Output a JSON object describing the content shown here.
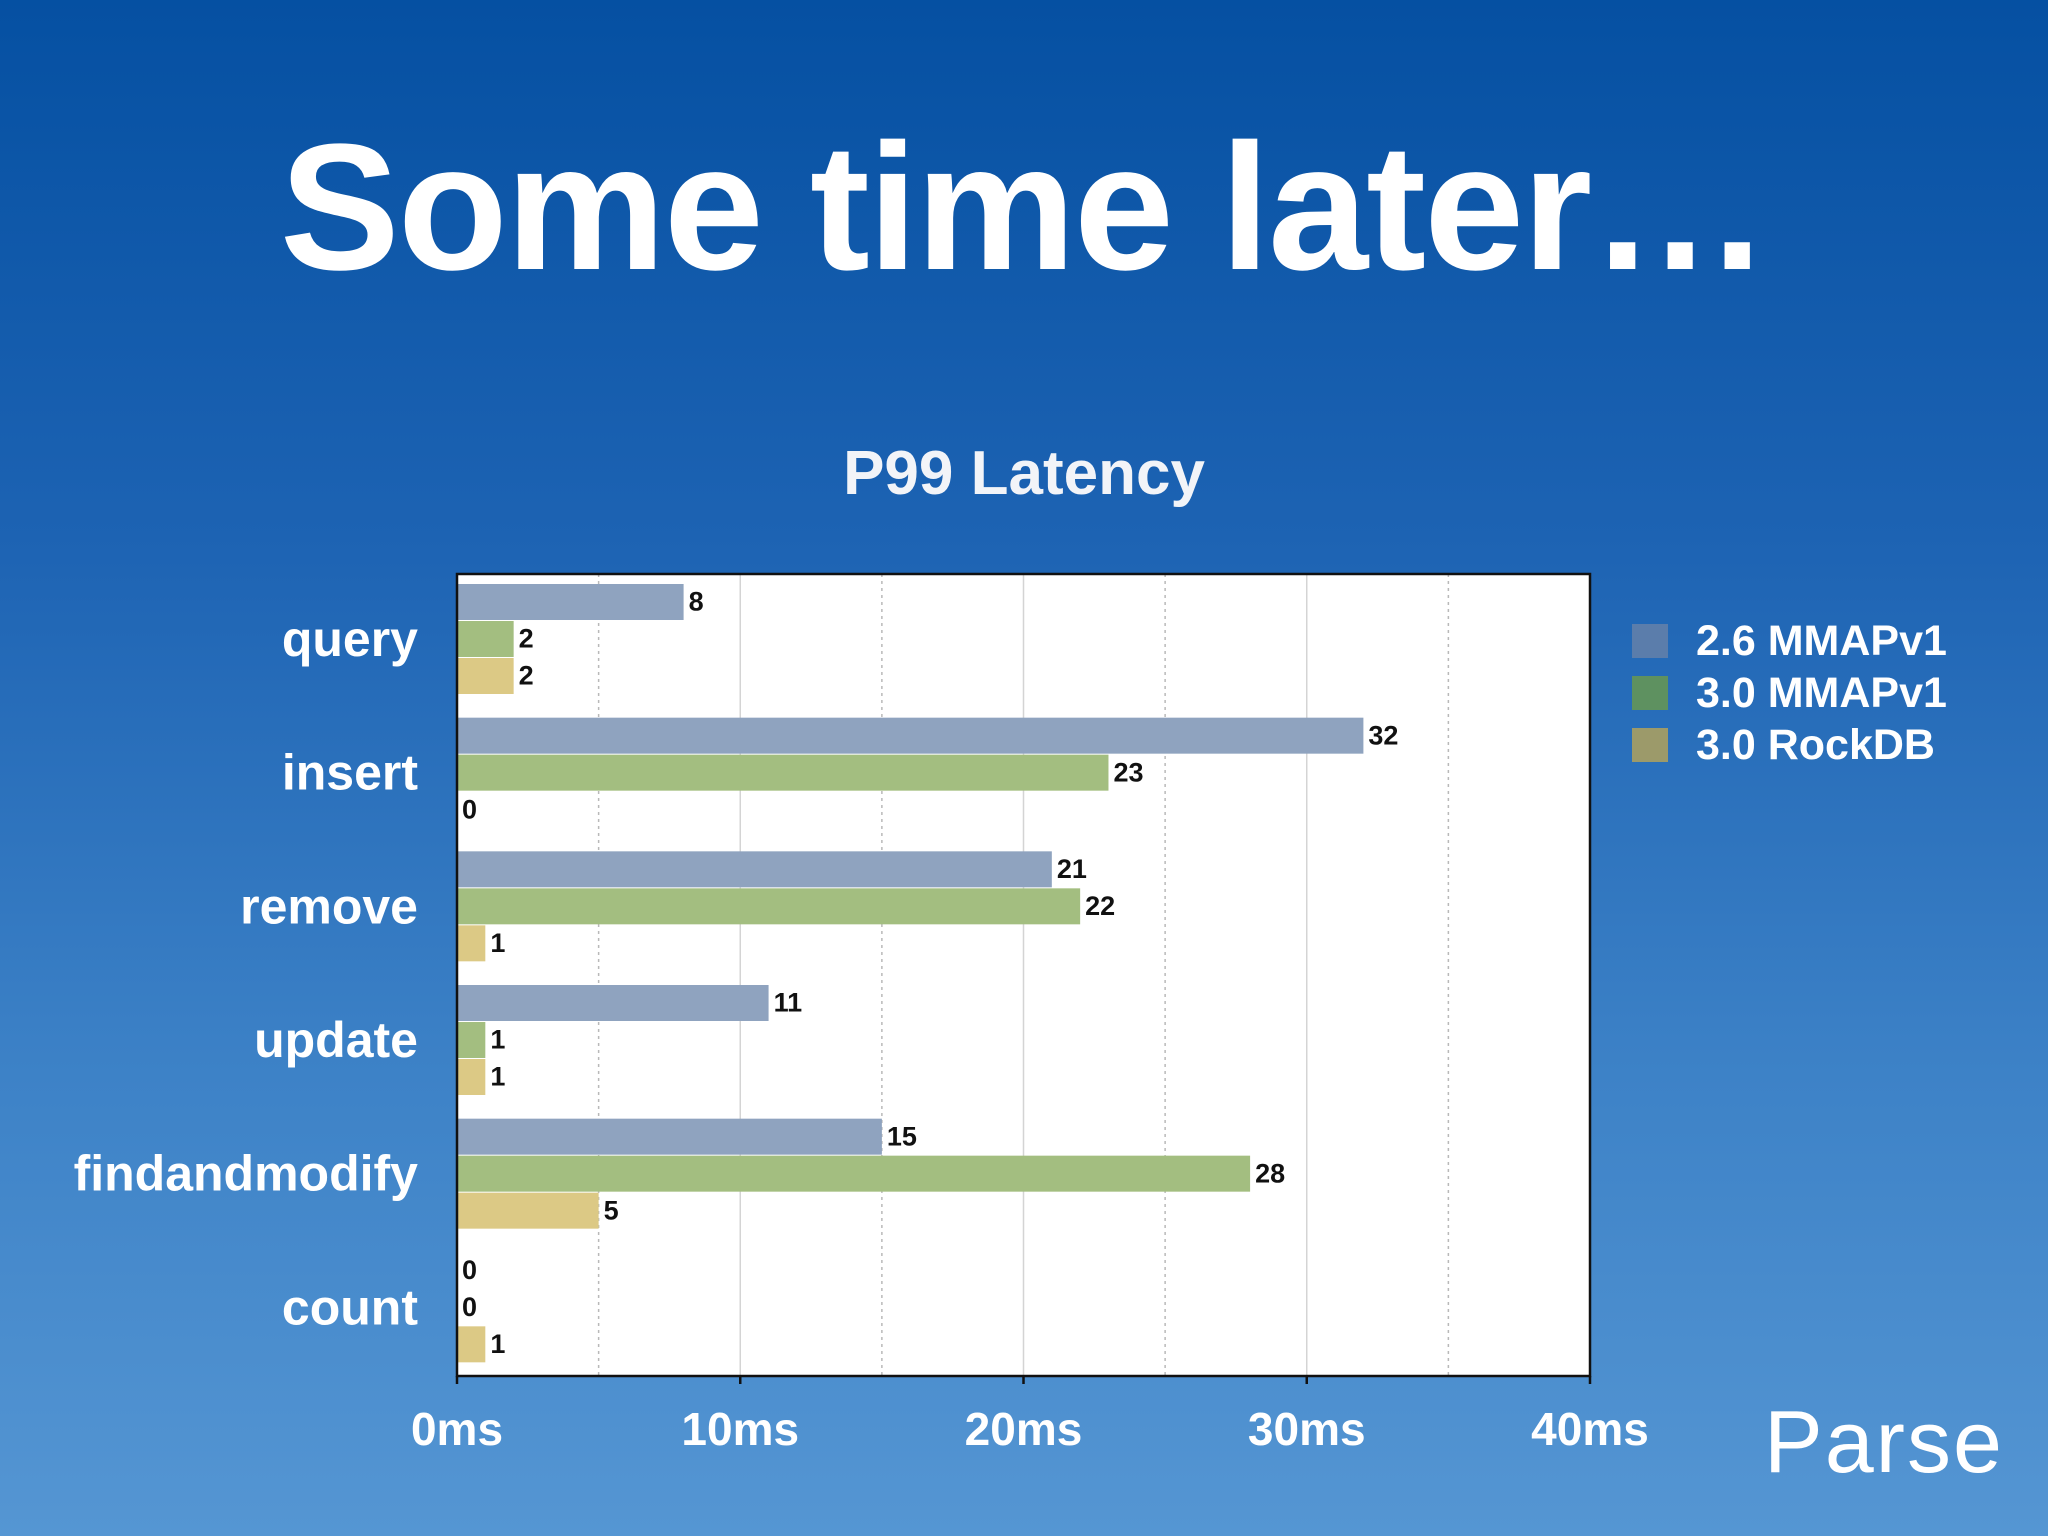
{
  "slide": {
    "title": "Some time later…",
    "brand": "Parse"
  },
  "colors": {
    "background_top": "#0550a2",
    "background_bottom": "#5596d3",
    "series_2_6_mmapv1": "#8fa3bf",
    "series_3_0_mmapv1": "#a3be80",
    "series_3_0_rockdb": "#dcc985",
    "legend_2_6_mmapv1": "#5b7dab",
    "legend_3_0_mmapv1": "#5e9160",
    "legend_3_0_rockdb": "#9c9a6a"
  },
  "chart_data": {
    "type": "bar",
    "orientation": "horizontal",
    "title": "P99 Latency",
    "categories": [
      "query",
      "insert",
      "remove",
      "update",
      "findandmodify",
      "count"
    ],
    "series": [
      {
        "name": "2.6 MMAPv1",
        "values": [
          8,
          32,
          21,
          11,
          15,
          0
        ]
      },
      {
        "name": "3.0 MMAPv1",
        "values": [
          2,
          23,
          22,
          1,
          28,
          0
        ]
      },
      {
        "name": "3.0 RockDB",
        "values": [
          2,
          0,
          1,
          1,
          5,
          1
        ]
      }
    ],
    "xlim": [
      0,
      40
    ],
    "xticks": [
      0,
      10,
      20,
      30,
      40
    ],
    "xtick_labels": [
      "0ms",
      "10ms",
      "20ms",
      "30ms",
      "40ms"
    ],
    "xlabel": "",
    "ylabel": "",
    "grid": "vertical dotted",
    "legend_position": "right"
  }
}
